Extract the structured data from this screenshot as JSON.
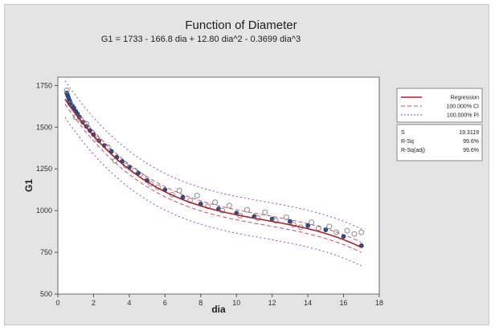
{
  "chart_data": {
    "type": "scatter",
    "title": "Function of Diameter",
    "subtitle": "G1 = 1733 - 166.8 dia + 12.80 dia^2 - 0.3699 dia^3",
    "xlabel": "dia",
    "ylabel": "G1",
    "xlim": [
      0,
      18
    ],
    "ylim": [
      500,
      1800
    ],
    "x_ticks": [
      "0",
      "2",
      "4",
      "6",
      "8",
      "10",
      "12",
      "14",
      "16",
      "18"
    ],
    "y_ticks": [
      "500",
      "750",
      "1000",
      "1250",
      "1500",
      "1750"
    ],
    "regression": {
      "b0": 1733,
      "b1": -166.8,
      "b2": 12.8,
      "b3": -0.3699
    },
    "ci_halfwidth": 30,
    "pi_halfwidth": 110,
    "legend": {
      "items": [
        {
          "label": "Regression",
          "style": "solid",
          "color": "#b0202a"
        },
        {
          "label": "100.000% CI",
          "style": "dashed",
          "color": "#d84a6a"
        },
        {
          "label": "100.000% PI",
          "style": "dotted",
          "color": "#8a4fd0"
        }
      ],
      "stats": [
        {
          "name": "S",
          "value": "19.3119"
        },
        {
          "name": "R-Sq",
          "value": "99.6%"
        },
        {
          "name": "R-Sq(adj)",
          "value": "99.6%"
        }
      ]
    },
    "series": [
      {
        "marker": "filled-circle",
        "color": "#2a4f8a",
        "points": [
          [
            0.5,
            1705
          ],
          [
            0.55,
            1690
          ],
          [
            0.6,
            1675
          ],
          [
            0.65,
            1660
          ],
          [
            0.7,
            1650
          ],
          [
            0.8,
            1630
          ],
          [
            0.9,
            1615
          ],
          [
            1.0,
            1595
          ],
          [
            1.1,
            1580
          ],
          [
            1.2,
            1560
          ],
          [
            1.4,
            1530
          ],
          [
            1.6,
            1505
          ],
          [
            1.8,
            1480
          ],
          [
            2.0,
            1455
          ],
          [
            2.3,
            1420
          ],
          [
            2.6,
            1390
          ],
          [
            3.0,
            1355
          ],
          [
            3.3,
            1320
          ],
          [
            3.6,
            1295
          ],
          [
            4.0,
            1260
          ],
          [
            4.5,
            1225
          ],
          [
            5.0,
            1180
          ],
          [
            6.0,
            1125
          ],
          [
            7.0,
            1080
          ],
          [
            8.0,
            1040
          ],
          [
            9.0,
            1010
          ],
          [
            10.0,
            985
          ],
          [
            11.0,
            965
          ],
          [
            12.0,
            950
          ],
          [
            13.0,
            935
          ],
          [
            14.0,
            910
          ],
          [
            15.0,
            885
          ],
          [
            16.0,
            845
          ],
          [
            17.0,
            790
          ]
        ]
      },
      {
        "marker": "open-circle",
        "color": "#8a8a8a",
        "points": [
          [
            0.5,
            1720
          ],
          [
            0.7,
            1640
          ],
          [
            1.0,
            1560
          ],
          [
            1.3,
            1545
          ],
          [
            1.6,
            1520
          ],
          [
            2.2,
            1430
          ],
          [
            2.8,
            1380
          ],
          [
            3.2,
            1300
          ],
          [
            3.8,
            1270
          ],
          [
            4.3,
            1240
          ],
          [
            4.8,
            1200
          ],
          [
            5.2,
            1160
          ],
          [
            5.6,
            1140
          ],
          [
            6.4,
            1095
          ],
          [
            6.8,
            1120
          ],
          [
            7.4,
            1060
          ],
          [
            7.8,
            1090
          ],
          [
            8.4,
            1025
          ],
          [
            8.8,
            1050
          ],
          [
            9.2,
            1000
          ],
          [
            9.6,
            1030
          ],
          [
            10.2,
            970
          ],
          [
            10.6,
            1005
          ],
          [
            11.2,
            955
          ],
          [
            11.6,
            990
          ],
          [
            12.2,
            940
          ],
          [
            12.8,
            960
          ],
          [
            13.2,
            915
          ],
          [
            13.6,
            900
          ],
          [
            14.2,
            930
          ],
          [
            14.6,
            895
          ],
          [
            15.2,
            905
          ],
          [
            15.6,
            870
          ],
          [
            16.2,
            880
          ],
          [
            16.6,
            860
          ],
          [
            17.0,
            870
          ]
        ]
      }
    ]
  }
}
